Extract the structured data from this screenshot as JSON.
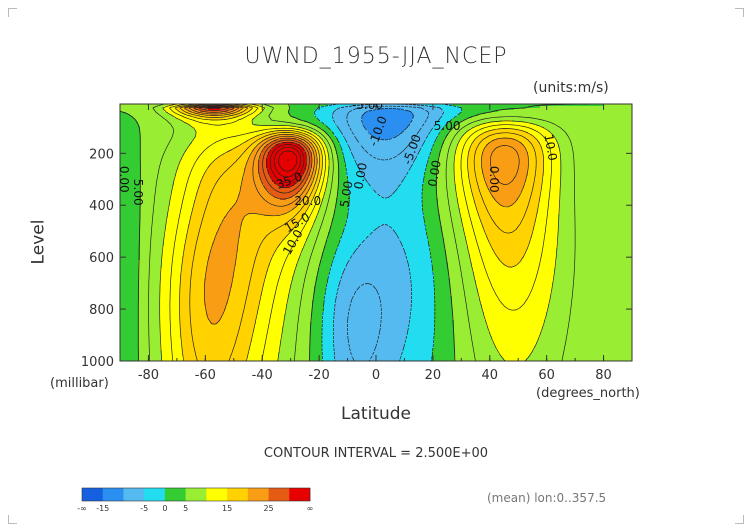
{
  "header": {
    "title": "UWND_1955-JJA_NCEP",
    "units": "(units:m/s)"
  },
  "axes": {
    "ylabel": "Level",
    "yunit": "(millibar)",
    "xlabel": "Latitude",
    "xunit": "(degrees_north)"
  },
  "footer": {
    "contour_interval": "CONTOUR INTERVAL = 2.500E+00",
    "mean": "(mean) lon:0..357.5"
  },
  "colors": {
    "bands": [
      "#1560e0",
      "#2a8ff0",
      "#55baf0",
      "#22ddf0",
      "#33cc33",
      "#99ee33",
      "#ffff00",
      "#ffd200",
      "#f89d14",
      "#e55b14",
      "#e60000"
    ],
    "line": "#222222"
  },
  "chart_data": {
    "type": "contour",
    "title": "UWND_1955-JJA_NCEP",
    "xlabel": "Latitude",
    "ylabel": "Level",
    "xlim": [
      -90,
      90
    ],
    "ylim": [
      1000,
      10
    ],
    "x_ticks": [
      -80,
      -60,
      -40,
      -20,
      0,
      20,
      40,
      60,
      80
    ],
    "y_ticks": [
      200,
      400,
      600,
      800,
      1000
    ],
    "contour_interval": 2.5,
    "contour_labels": [
      "-5.00",
      "-10.0",
      "-5.00",
      "0.00",
      "0.00",
      "5.00",
      "0.00",
      "35.0",
      "20.0",
      "15.0",
      "10.0",
      "5.00",
      "0.00",
      "10.0",
      "5.00"
    ],
    "maxima": [
      {
        "lat": -30,
        "level": 200,
        "value": 35
      },
      {
        "lat": -57,
        "level": 30,
        "value": 30
      },
      {
        "lat": 45,
        "level": 200,
        "value": 20
      },
      {
        "lat": 5,
        "level": 30,
        "value": -10
      }
    ],
    "colorbar": {
      "labels": [
        "-∞",
        "-15",
        "-5",
        "0",
        "5",
        "15",
        "25",
        "∞"
      ],
      "bounds": [
        -15,
        -10,
        -5,
        -2.5,
        0,
        5,
        10,
        15,
        20,
        25
      ]
    }
  }
}
